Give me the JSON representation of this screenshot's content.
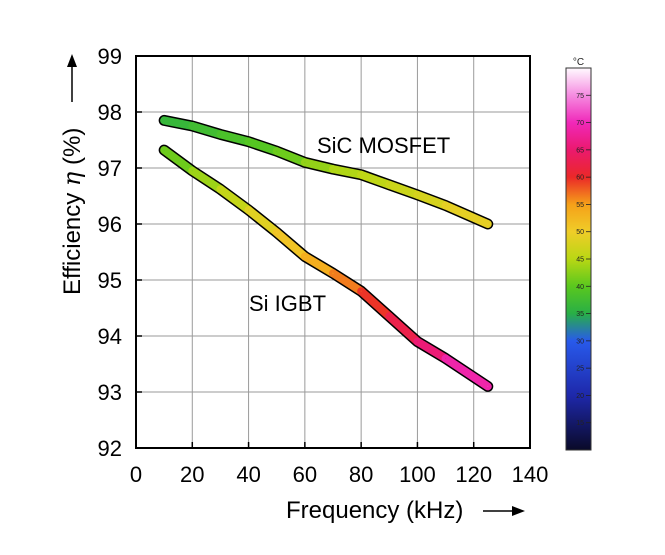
{
  "chart_data": {
    "type": "line",
    "xlabel": "Frequency (kHz)",
    "ylabel": "Efficiency η (%)",
    "ylabel_parts": [
      "Efficiency ",
      "η",
      " (%)"
    ],
    "xlim": [
      0,
      140
    ],
    "ylim": [
      92,
      99
    ],
    "x_ticks": [
      0,
      20,
      40,
      60,
      80,
      100,
      120,
      140
    ],
    "y_ticks": [
      92,
      93,
      94,
      95,
      96,
      97,
      98,
      99
    ],
    "x_tick_labels": [
      "0",
      "20",
      "40",
      "60",
      "80",
      "100",
      "120",
      "140"
    ],
    "y_tick_labels": [
      "92",
      "93",
      "94",
      "95",
      "96",
      "97",
      "98",
      "99"
    ],
    "grid": true,
    "series": [
      {
        "name": "SiC MOSFET",
        "x": [
          10,
          20,
          30,
          40,
          50,
          60,
          70,
          80,
          90,
          100,
          110,
          125
        ],
        "values": [
          97.85,
          97.75,
          97.6,
          97.47,
          97.3,
          97.1,
          96.98,
          96.88,
          96.7,
          96.52,
          96.33,
          96.0
        ],
        "temperature": [
          36,
          37,
          38,
          39,
          40,
          42,
          44,
          45,
          46,
          47,
          48,
          50
        ]
      },
      {
        "name": "Si IGBT",
        "x": [
          10,
          20,
          30,
          40,
          50,
          60,
          70,
          80,
          90,
          100,
          110,
          125
        ],
        "values": [
          97.32,
          96.95,
          96.62,
          96.25,
          95.85,
          95.42,
          95.12,
          94.8,
          94.35,
          93.9,
          93.6,
          93.1
        ],
        "temperature": [
          40,
          42,
          45,
          47,
          50,
          52,
          55,
          58,
          61,
          64,
          67,
          71
        ]
      }
    ],
    "colorbar": {
      "unit": "°C",
      "min": 10,
      "max": 80,
      "ticks": [
        15,
        20,
        25,
        30,
        35,
        40,
        45,
        50,
        55,
        60,
        65,
        70,
        75
      ],
      "tick_labels": [
        "15",
        "20",
        "25",
        "30",
        "35",
        "40",
        "45",
        "50",
        "55",
        "60",
        "65",
        "70",
        "75"
      ]
    }
  }
}
